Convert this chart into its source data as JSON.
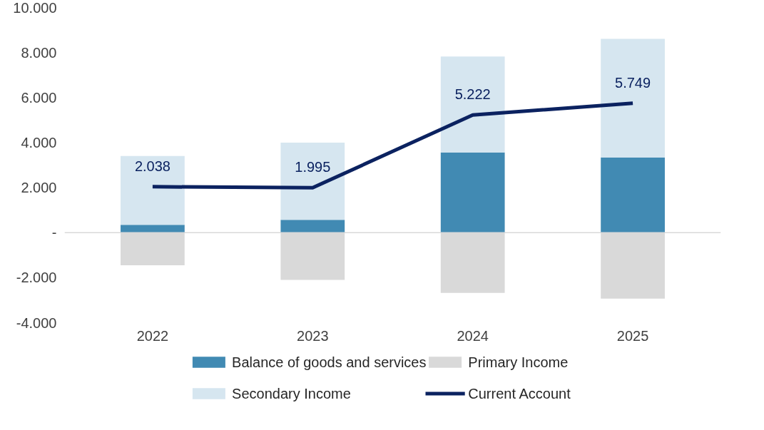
{
  "chart_data": {
    "type": "bar",
    "stacked": true,
    "categories": [
      "2022",
      "2023",
      "2024",
      "2025"
    ],
    "series": [
      {
        "name": "Balance of goods and services",
        "color": "#418ab3",
        "values": [
          350,
          570,
          3560,
          3340
        ]
      },
      {
        "name": "Primary Income",
        "color": "#d9d9d9",
        "values": [
          -1450,
          -2100,
          -2680,
          -2930
        ]
      },
      {
        "name": "Secondary Income",
        "color": "#d6e6f0",
        "values": [
          3050,
          3430,
          4260,
          5270
        ]
      },
      {
        "name": "Current Account",
        "type": "line",
        "color": "#0b2260",
        "values": [
          2038,
          1995,
          5222,
          5749
        ],
        "value_labels": [
          "2.038",
          "1.995",
          "5.222",
          "5.749"
        ]
      }
    ],
    "ylim": [
      -4000,
      10000
    ],
    "yticks": [
      {
        "value": -4000,
        "label": "-4.000"
      },
      {
        "value": -2000,
        "label": "-2.000"
      },
      {
        "value": 0,
        "label": "-"
      },
      {
        "value": 2000,
        "label": "2.000"
      },
      {
        "value": 4000,
        "label": "4.000"
      },
      {
        "value": 6000,
        "label": "6.000"
      },
      {
        "value": 8000,
        "label": "8.000"
      },
      {
        "value": 10000,
        "label": "10.000"
      }
    ],
    "ref_lines": [
      {
        "axis": "y",
        "value": 0,
        "color": "#d9d9d9"
      }
    ],
    "grid": false,
    "legend": "bottom"
  }
}
